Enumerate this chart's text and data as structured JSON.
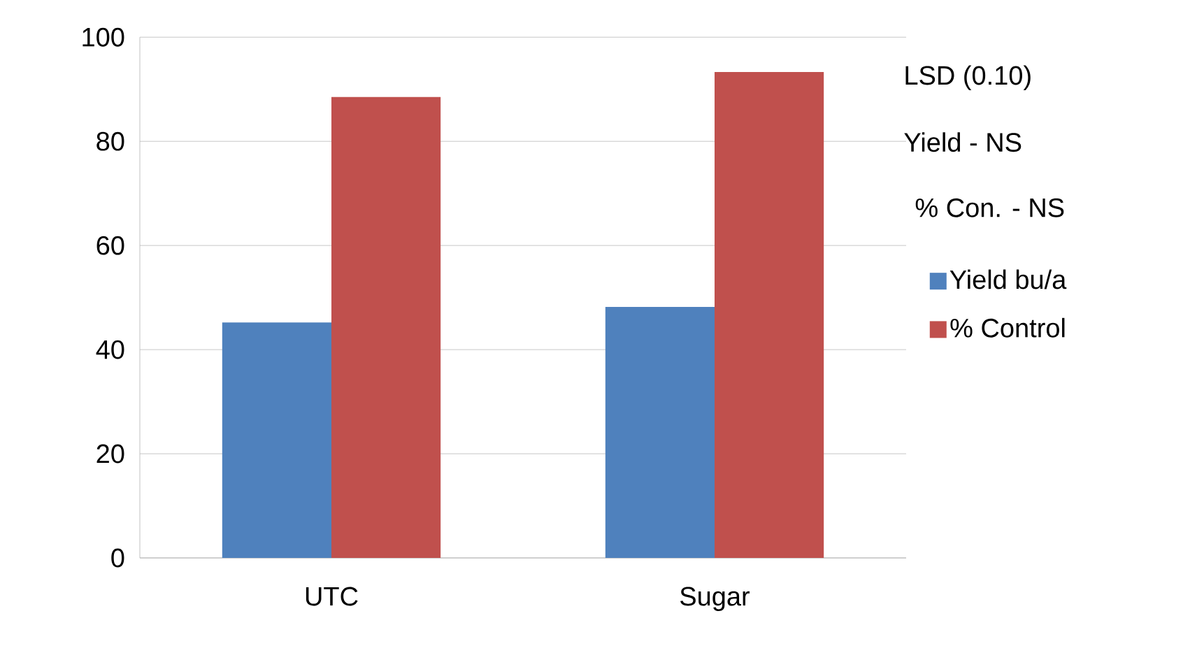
{
  "chart_data": {
    "type": "bar",
    "categories": [
      "UTC",
      "Sugar"
    ],
    "series": [
      {
        "name": "Yield bu/a",
        "color": "#4f81bd",
        "values": [
          45.2,
          48.2
        ]
      },
      {
        "name": "% Control",
        "color": "#c0504d",
        "values": [
          88.5,
          93.3
        ]
      }
    ],
    "ylim": [
      0,
      100
    ],
    "yticks": [
      0,
      20,
      40,
      60,
      80,
      100
    ],
    "grid": "y",
    "legend": "right",
    "annotations": [
      "LSD (0.10)",
      "Yield  - NS",
      "% Con. - NS"
    ]
  }
}
